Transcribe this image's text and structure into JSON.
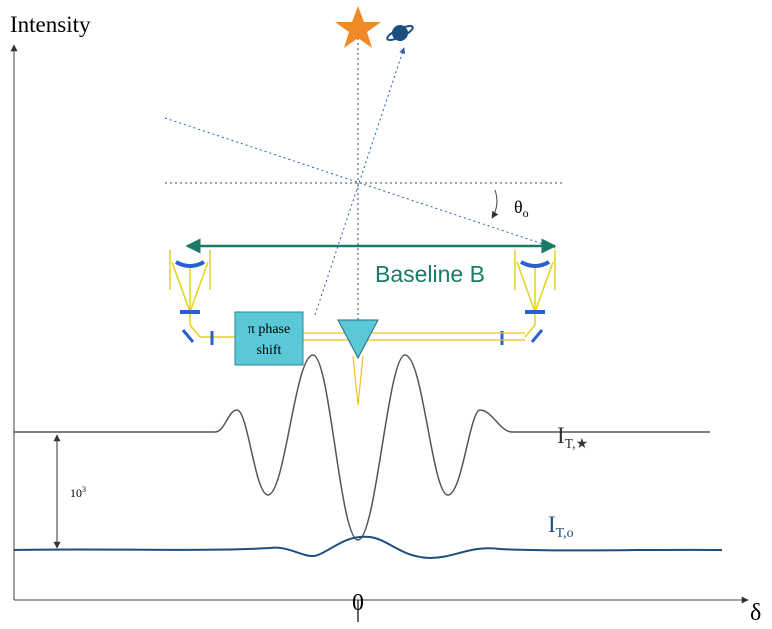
{
  "axes": {
    "y_label": "Intensity",
    "x_label": "δ",
    "x_origin": "0"
  },
  "angle_label": {
    "main": "θ",
    "sub": "o"
  },
  "baseline_label": "Baseline B",
  "phase_shift": {
    "lines": [
      "π phase",
      "shift"
    ]
  },
  "star_curve_label": {
    "main": "I",
    "sub": "T,★"
  },
  "contrast_label": {
    "base": "10",
    "sup": "3"
  },
  "planet_curve_label": {
    "main": "I",
    "sub": "T,o"
  }
}
